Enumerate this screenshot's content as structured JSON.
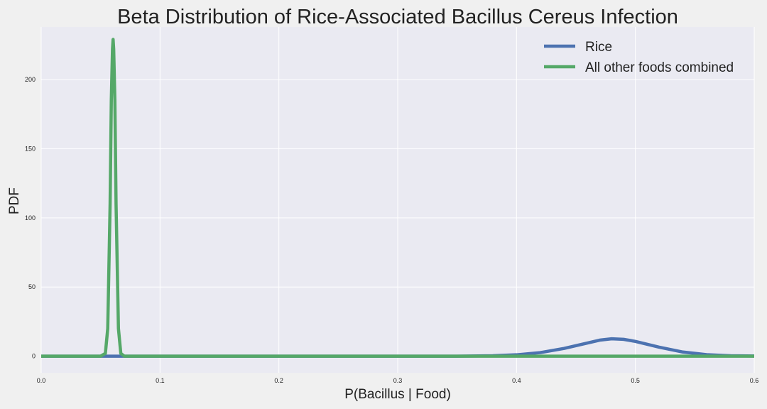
{
  "chart_data": {
    "type": "line",
    "title": "Beta Distribution of Rice-Associated Bacillus Cereus Infection",
    "xlabel": "P(Bacillus | Food)",
    "ylabel": "PDF",
    "xlim": [
      0.0,
      0.6
    ],
    "ylim": [
      -12,
      238
    ],
    "x_ticks": [
      0.0,
      0.1,
      0.2,
      0.3,
      0.4,
      0.5,
      0.6
    ],
    "x_tick_labels": [
      "0.0",
      "0.1",
      "0.2",
      "0.3",
      "0.4",
      "0.5",
      "0.6"
    ],
    "y_ticks": [
      0,
      50,
      100,
      150,
      200
    ],
    "y_tick_labels": [
      "0",
      "50",
      "100",
      "150",
      "200"
    ],
    "grid": true,
    "legend_position": "top-right",
    "series": [
      {
        "name": "Rice",
        "color": "#4c72b0",
        "points": [
          [
            0.0,
            0
          ],
          [
            0.35,
            0
          ],
          [
            0.38,
            0.3
          ],
          [
            0.4,
            1.0
          ],
          [
            0.42,
            2.6
          ],
          [
            0.44,
            5.6
          ],
          [
            0.46,
            9.6
          ],
          [
            0.47,
            11.6
          ],
          [
            0.48,
            12.6
          ],
          [
            0.49,
            12.2
          ],
          [
            0.5,
            10.7
          ],
          [
            0.52,
            6.5
          ],
          [
            0.54,
            3.0
          ],
          [
            0.56,
            1.1
          ],
          [
            0.58,
            0.3
          ],
          [
            0.6,
            0.1
          ]
        ]
      },
      {
        "name": "All other foods combined",
        "color": "#55a868",
        "points": [
          [
            0.0,
            0
          ],
          [
            0.05,
            0
          ],
          [
            0.054,
            2
          ],
          [
            0.056,
            20
          ],
          [
            0.058,
            110
          ],
          [
            0.059,
            185
          ],
          [
            0.06,
            222
          ],
          [
            0.0605,
            229
          ],
          [
            0.061,
            222
          ],
          [
            0.062,
            185
          ],
          [
            0.063,
            110
          ],
          [
            0.065,
            20
          ],
          [
            0.067,
            2
          ],
          [
            0.07,
            0
          ],
          [
            0.6,
            0
          ]
        ]
      }
    ]
  }
}
